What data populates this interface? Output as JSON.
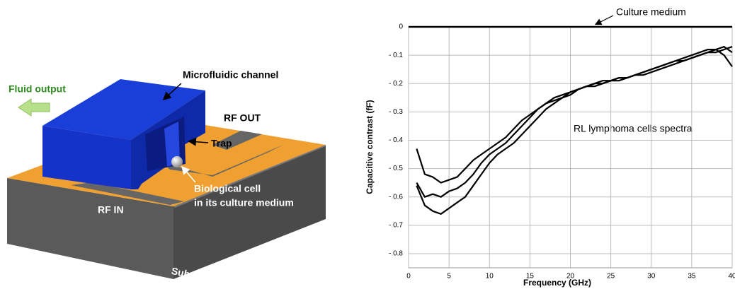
{
  "diagram": {
    "channel_label": "Microfluidic channel",
    "fluid_output": "Fluid output",
    "rf_out": "RF OUT",
    "trap": "Trap",
    "cell_label": [
      "Biological cell",
      "in its culture medium"
    ],
    "rf_in": "RF IN",
    "substrate": "Substrate"
  },
  "chart_data": {
    "type": "line",
    "xlabel": "Frequency (GHz)",
    "ylabel": "Capacitive contrast (fF)",
    "annotations": [
      "Culture medium",
      "RL lymphoma cells spectra"
    ],
    "xlim": [
      0,
      40
    ],
    "xticks": [
      0,
      5,
      10,
      15,
      20,
      25,
      30,
      35,
      40
    ],
    "ylim": [
      -0.85,
      0
    ],
    "yticks": [
      0,
      {
        "value": -0.1,
        "label": "- 0.1"
      },
      {
        "value": -0.2,
        "label": "- 0.2"
      },
      {
        "value": -0.3,
        "label": "- 0.3"
      },
      {
        "value": -0.4,
        "label": "- 0.4"
      },
      {
        "value": -0.5,
        "label": "- 0.5"
      },
      {
        "value": -0.6,
        "label": "- 0.6"
      },
      {
        "value": -0.7,
        "label": "- 0.7"
      },
      {
        "value": -0.8,
        "label": "- 0.8"
      }
    ],
    "grid": true,
    "x": [
      1,
      2,
      3,
      4,
      5,
      6,
      7,
      8,
      9,
      10,
      11,
      12,
      13,
      14,
      15,
      16,
      17,
      18,
      19,
      20,
      21,
      22,
      23,
      24,
      25,
      26,
      27,
      28,
      29,
      30,
      31,
      32,
      33,
      34,
      35,
      36,
      37,
      38,
      39,
      40
    ],
    "series": [
      {
        "color": "#000000",
        "x": [
          0,
          40
        ],
        "values": [
          0,
          0
        ]
      },
      {
        "color": "#000000",
        "values": [
          -0.43,
          -0.52,
          -0.53,
          -0.55,
          -0.54,
          -0.53,
          -0.5,
          -0.47,
          -0.45,
          -0.43,
          -0.41,
          -0.39,
          -0.36,
          -0.33,
          -0.31,
          -0.29,
          -0.27,
          -0.26,
          -0.25,
          -0.23,
          -0.22,
          -0.21,
          -0.21,
          -0.2,
          -0.19,
          -0.19,
          -0.18,
          -0.17,
          -0.16,
          -0.15,
          -0.14,
          -0.13,
          -0.12,
          -0.11,
          -0.1,
          -0.09,
          -0.08,
          -0.08,
          -0.1,
          -0.14
        ]
      },
      {
        "color": "#000000",
        "values": [
          -0.55,
          -0.6,
          -0.59,
          -0.6,
          -0.58,
          -0.57,
          -0.55,
          -0.52,
          -0.48,
          -0.45,
          -0.43,
          -0.41,
          -0.38,
          -0.35,
          -0.32,
          -0.29,
          -0.27,
          -0.25,
          -0.24,
          -0.23,
          -0.22,
          -0.21,
          -0.2,
          -0.19,
          -0.19,
          -0.18,
          -0.18,
          -0.17,
          -0.17,
          -0.16,
          -0.15,
          -0.14,
          -0.13,
          -0.12,
          -0.11,
          -0.1,
          -0.09,
          -0.09,
          -0.08,
          -0.07
        ]
      },
      {
        "color": "#000000",
        "values": [
          -0.56,
          -0.63,
          -0.65,
          -0.66,
          -0.64,
          -0.62,
          -0.6,
          -0.56,
          -0.52,
          -0.48,
          -0.45,
          -0.43,
          -0.41,
          -0.38,
          -0.35,
          -0.32,
          -0.29,
          -0.27,
          -0.25,
          -0.24,
          -0.22,
          -0.21,
          -0.2,
          -0.2,
          -0.19,
          -0.18,
          -0.18,
          -0.17,
          -0.16,
          -0.15,
          -0.14,
          -0.13,
          -0.12,
          -0.12,
          -0.11,
          -0.1,
          -0.09,
          -0.08,
          -0.07,
          -0.09
        ]
      }
    ]
  }
}
